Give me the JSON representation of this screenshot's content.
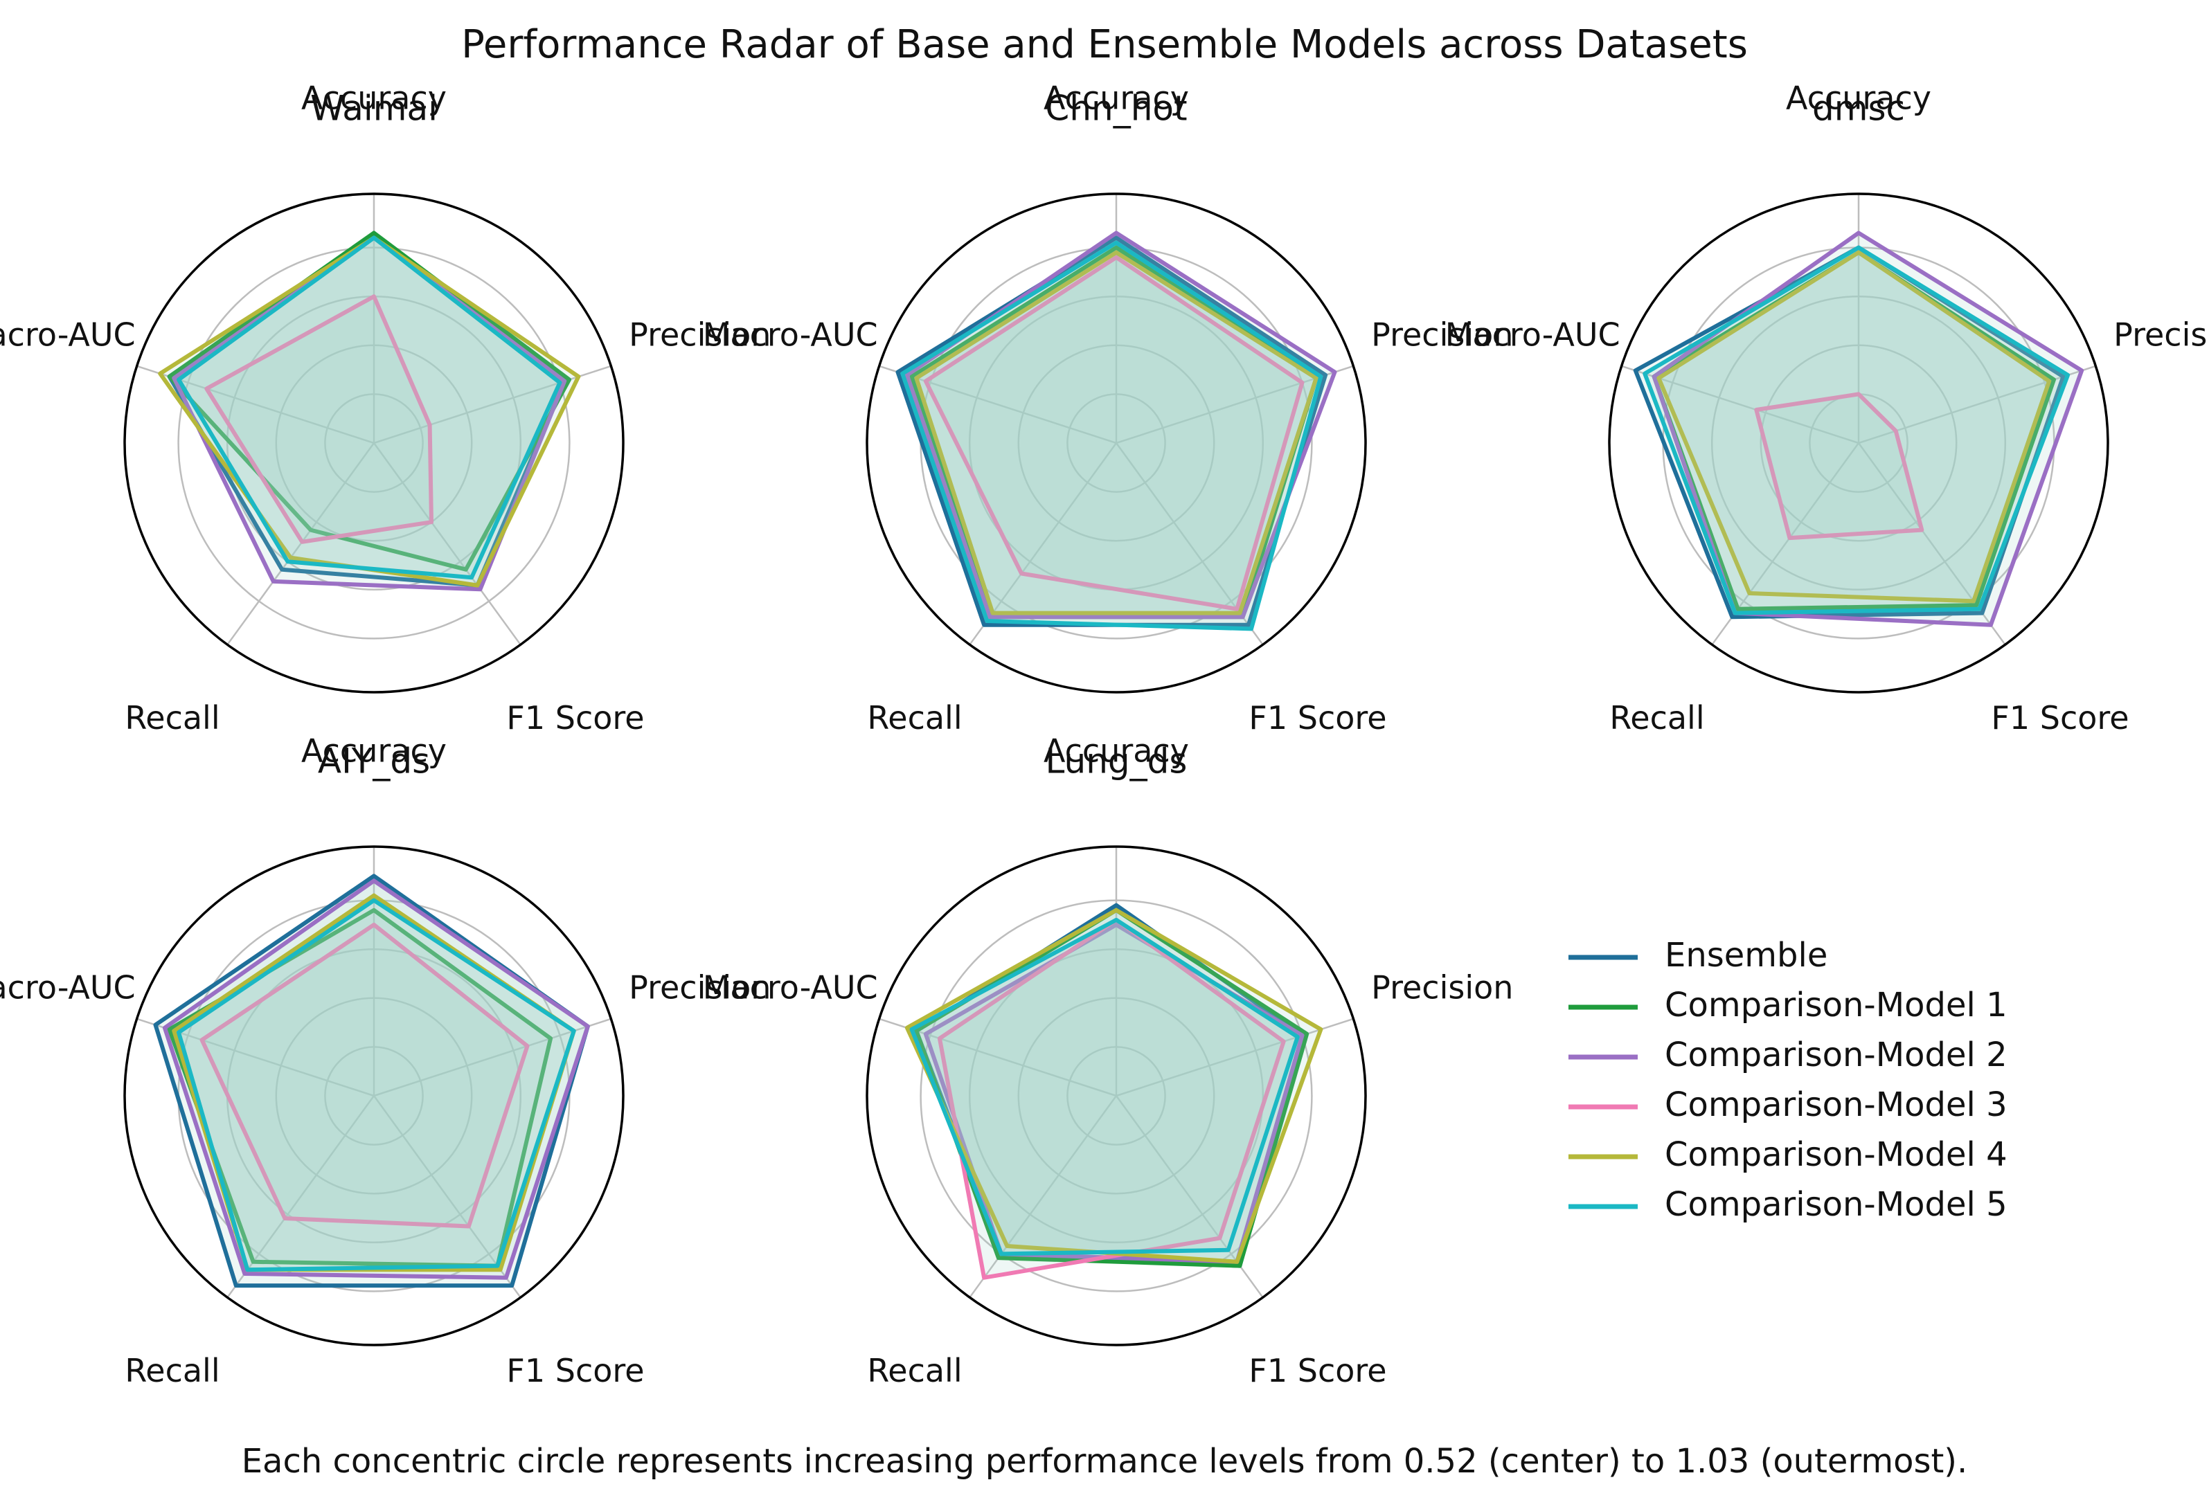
{
  "chart_data": {
    "type": "radar",
    "title": "Performance Radar of Base and Ensemble Models across Datasets",
    "caption": "Each concentric circle represents increasing performance levels from 0.52 (center) to 1.03 (outermost).",
    "range": [
      0.52,
      1.03
    ],
    "grid_levels": [
      0.62,
      0.72,
      0.82,
      0.92
    ],
    "axes": [
      "Accuracy",
      "Precision",
      "F1 Score",
      "Recall",
      "Macro-AUC"
    ],
    "series_styles": [
      {
        "name": "Ensemble",
        "color": "#1f6f9a"
      },
      {
        "name": "Comparison-Model 1",
        "color": "#1f9c3c"
      },
      {
        "name": "Comparison-Model 2",
        "color": "#9a6fc4"
      },
      {
        "name": "Comparison-Model 3",
        "color": "#f07ab3"
      },
      {
        "name": "Comparison-Model 4",
        "color": "#b5b83a"
      },
      {
        "name": "Comparison-Model 5",
        "color": "#1bb8c4"
      }
    ],
    "fill_color": "#9fd3c7",
    "panels": [
      {
        "title": "Waimai",
        "series": [
          {
            "name": "Ensemble",
            "values": [
              0.94,
              0.93,
              0.88,
              0.84,
              0.96
            ]
          },
          {
            "name": "Comparison-Model 1",
            "values": [
              0.95,
              0.94,
              0.84,
              0.74,
              0.96
            ]
          },
          {
            "name": "Comparison-Model 2",
            "values": [
              0.94,
              0.93,
              0.89,
              0.87,
              0.95
            ]
          },
          {
            "name": "Comparison-Model 3",
            "values": [
              0.82,
              0.64,
              0.72,
              0.77,
              0.88
            ]
          },
          {
            "name": "Comparison-Model 4",
            "values": [
              0.94,
              0.96,
              0.88,
              0.81,
              0.98
            ]
          },
          {
            "name": "Comparison-Model 5",
            "values": [
              0.94,
              0.92,
              0.86,
              0.82,
              0.94
            ]
          }
        ]
      },
      {
        "title": "Chn_hot",
        "series": [
          {
            "name": "Ensemble",
            "values": [
              0.94,
              0.97,
              0.98,
              0.98,
              0.99
            ]
          },
          {
            "name": "Comparison-Model 1",
            "values": [
              0.92,
              0.95,
              0.96,
              0.96,
              0.96
            ]
          },
          {
            "name": "Comparison-Model 2",
            "values": [
              0.95,
              0.99,
              0.96,
              0.96,
              0.97
            ]
          },
          {
            "name": "Comparison-Model 3",
            "values": [
              0.9,
              0.92,
              0.94,
              0.85,
              0.93
            ]
          },
          {
            "name": "Comparison-Model 4",
            "values": [
              0.91,
              0.95,
              0.95,
              0.95,
              0.95
            ]
          },
          {
            "name": "Comparison-Model 5",
            "values": [
              0.93,
              0.96,
              0.99,
              0.97,
              0.98
            ]
          }
        ]
      },
      {
        "title": "dmsc",
        "series": [
          {
            "name": "Ensemble",
            "values": [
              0.92,
              0.96,
              0.95,
              0.96,
              1.0
            ]
          },
          {
            "name": "Comparison-Model 1",
            "values": [
              0.91,
              0.94,
              0.93,
              0.94,
              0.96
            ]
          },
          {
            "name": "Comparison-Model 2",
            "values": [
              0.95,
              1.0,
              0.98,
              0.95,
              0.96
            ]
          },
          {
            "name": "Comparison-Model 3",
            "values": [
              0.62,
              0.6,
              0.74,
              0.76,
              0.74
            ]
          },
          {
            "name": "Comparison-Model 4",
            "values": [
              0.91,
              0.93,
              0.92,
              0.9,
              0.95
            ]
          },
          {
            "name": "Comparison-Model 5",
            "values": [
              0.92,
              0.97,
              0.94,
              0.95,
              0.98
            ]
          }
        ]
      },
      {
        "title": "AIY_ds",
        "series": [
          {
            "name": "Ensemble",
            "values": [
              0.97,
              0.98,
              1.0,
              1.0,
              0.99
            ]
          },
          {
            "name": "Comparison-Model 1",
            "values": [
              0.9,
              0.9,
              0.95,
              0.94,
              0.96
            ]
          },
          {
            "name": "Comparison-Model 2",
            "values": [
              0.96,
              0.98,
              0.98,
              0.97,
              0.97
            ]
          },
          {
            "name": "Comparison-Model 3",
            "values": [
              0.87,
              0.85,
              0.85,
              0.83,
              0.89
            ]
          },
          {
            "name": "Comparison-Model 4",
            "values": [
              0.93,
              0.95,
              0.96,
              0.96,
              0.95
            ]
          },
          {
            "name": "Comparison-Model 5",
            "values": [
              0.92,
              0.95,
              0.95,
              0.96,
              0.94
            ]
          }
        ]
      },
      {
        "title": "Lung_ds",
        "series": [
          {
            "name": "Ensemble",
            "values": [
              0.91,
              0.92,
              0.95,
              0.92,
              0.95
            ]
          },
          {
            "name": "Comparison-Model 1",
            "values": [
              0.9,
              0.93,
              0.95,
              0.93,
              0.95
            ]
          },
          {
            "name": "Comparison-Model 2",
            "values": [
              0.87,
              0.92,
              0.94,
              0.92,
              0.93
            ]
          },
          {
            "name": "Comparison-Model 3",
            "values": [
              0.88,
              0.88,
              0.88,
              0.98,
              0.9
            ]
          },
          {
            "name": "Comparison-Model 4",
            "values": [
              0.9,
              0.96,
              0.94,
              0.9,
              0.97
            ]
          },
          {
            "name": "Comparison-Model 5",
            "values": [
              0.88,
              0.91,
              0.91,
              0.92,
              0.96
            ]
          }
        ]
      }
    ]
  }
}
